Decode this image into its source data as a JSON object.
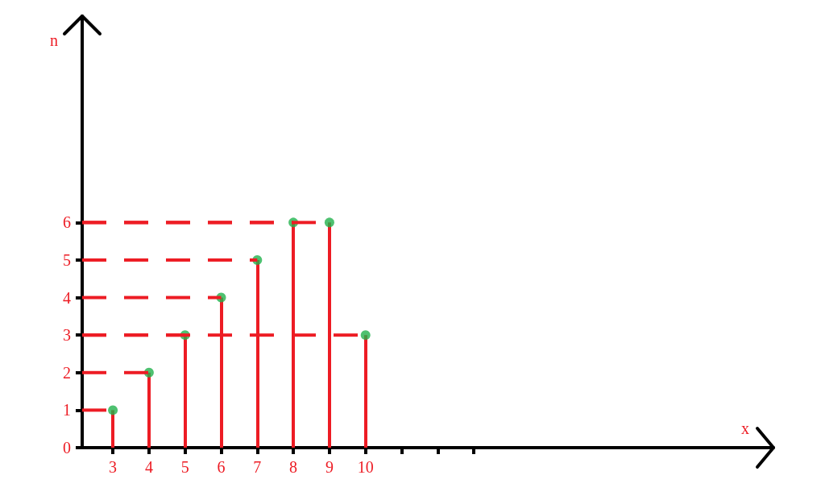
{
  "chart_data": {
    "type": "lollipop",
    "xlabel": "x",
    "ylabel": "n",
    "x": [
      3,
      4,
      5,
      6,
      7,
      8,
      9,
      10
    ],
    "series": [
      {
        "color": "#ed1c24",
        "colors": [
          "#22b14c",
          "#22b14c",
          "#22b14c",
          "#22b14c",
          "#22b14c",
          "#22b14c",
          "#22b14c",
          "#22b14c"
        ],
        "values": [
          1,
          2,
          3,
          4,
          5,
          6,
          6,
          3
        ]
      }
    ],
    "marker": "circle",
    "grid": false,
    "xlim": [
      2.15,
      21.3
    ],
    "xticks": [
      3,
      4,
      5,
      6,
      7,
      8,
      9,
      10,
      {
        "value": 11,
        "label": null
      },
      {
        "value": 12,
        "label": null
      },
      {
        "value": 13,
        "label": null
      }
    ],
    "ylim": [
      0,
      11.5
    ],
    "yticks": [
      0,
      1,
      2,
      3,
      4,
      5,
      6
    ]
  }
}
